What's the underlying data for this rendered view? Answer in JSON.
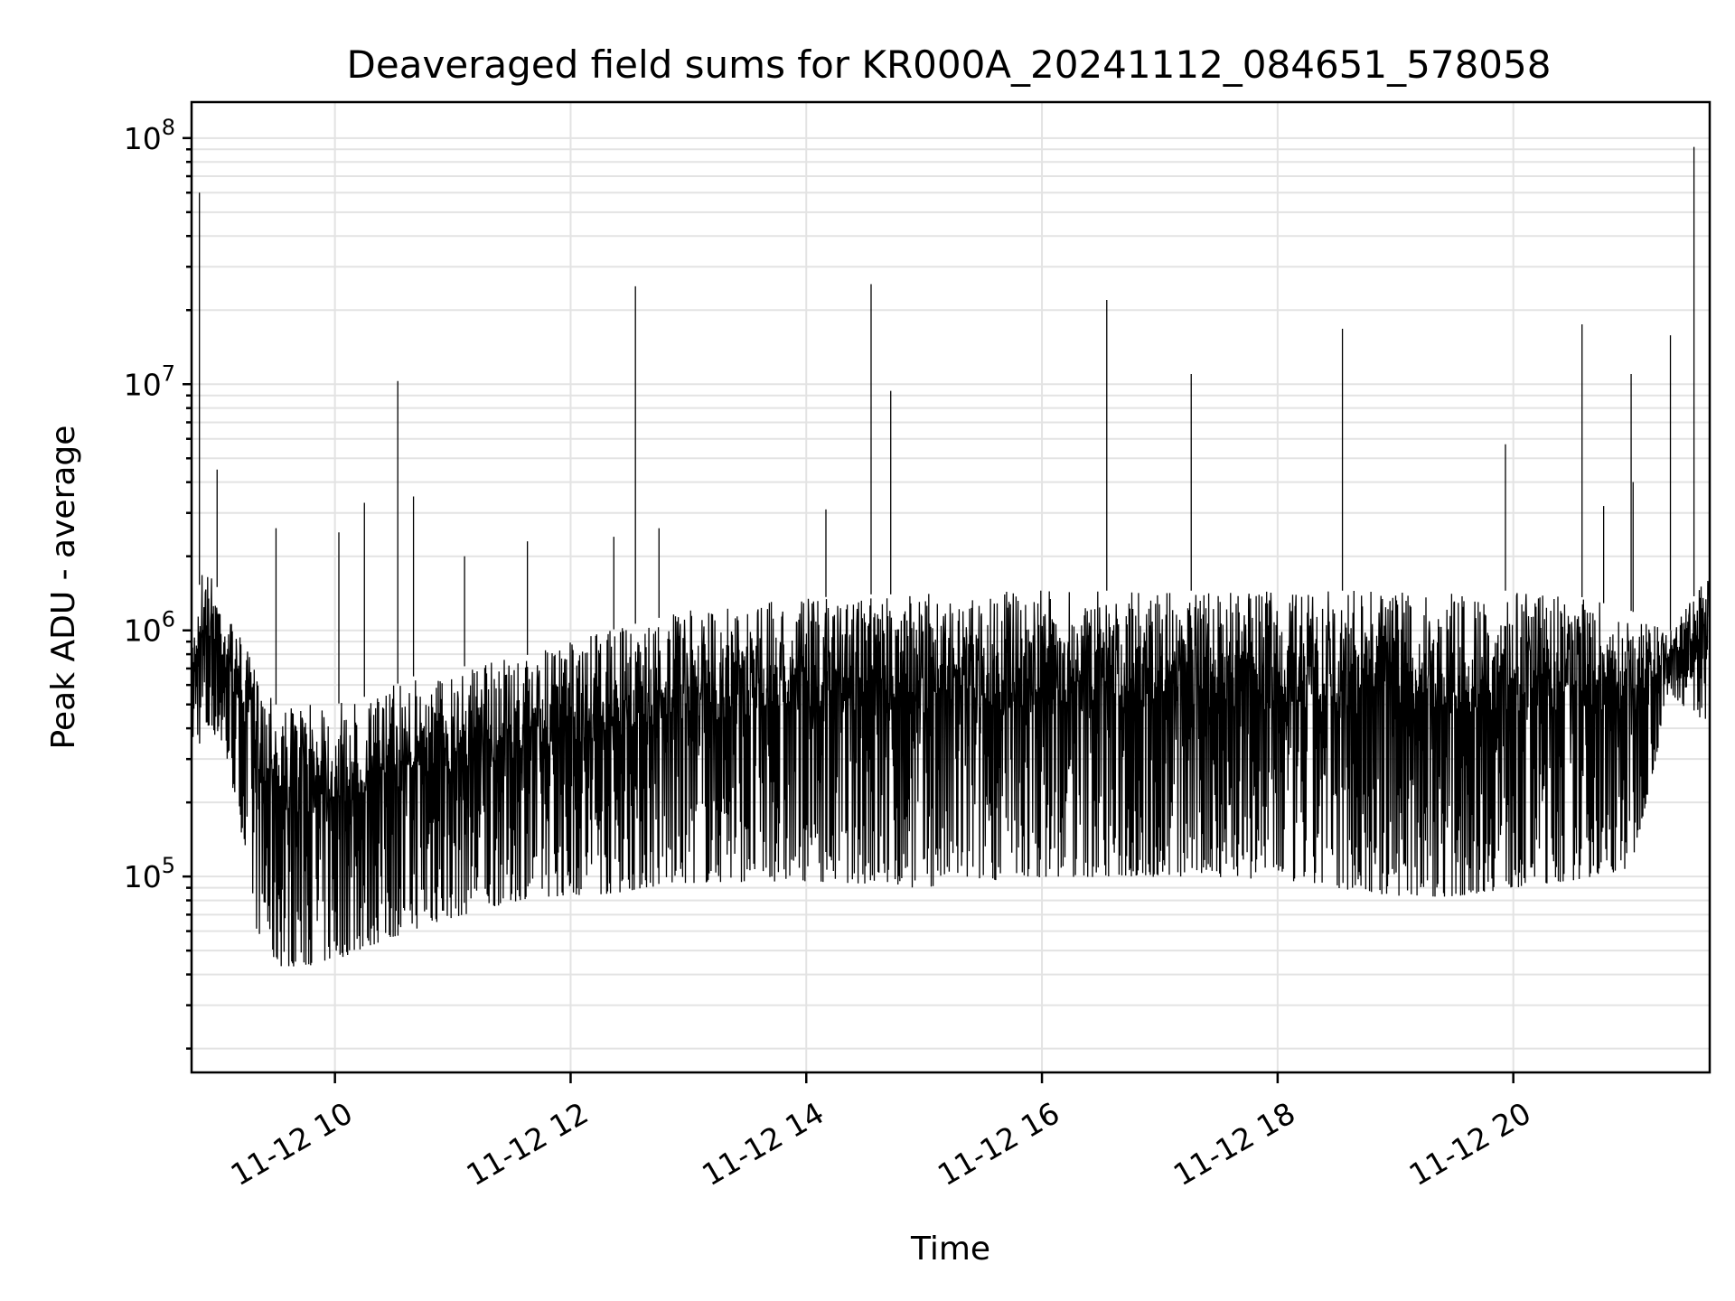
{
  "chart_data": {
    "type": "line",
    "title": "Deaveraged field sums for KR000A_20241112_084651_578058",
    "xlabel": "Time",
    "ylabel": "Peak ADU - average",
    "yscale": "log",
    "ylim": [
      16000,
      140000000
    ],
    "xlim": [
      "2024-11-12 08:47",
      "2024-11-12 21:40"
    ],
    "grid": true,
    "x_ticks": [
      "11-12 10",
      "11-12 12",
      "11-12 14",
      "11-12 16",
      "11-12 18",
      "11-12 20"
    ],
    "y_ticks": [
      {
        "base": "10",
        "exp": "5"
      },
      {
        "base": "10",
        "exp": "6"
      },
      {
        "base": "10",
        "exp": "7"
      },
      {
        "base": "10",
        "exp": "8"
      }
    ],
    "series": [
      {
        "color": "#000000",
        "x": [
          "2024-11-12 08:47",
          "2024-11-12 08:53",
          "2024-11-12 09:00",
          "2024-11-12 09:10",
          "2024-11-12 09:20",
          "2024-11-12 09:30",
          "2024-11-12 09:45",
          "2024-11-12 10:00",
          "2024-11-12 10:20",
          "2024-11-12 10:40",
          "2024-11-12 11:00",
          "2024-11-12 11:20",
          "2024-11-12 11:40",
          "2024-11-12 12:00",
          "2024-11-12 12:20",
          "2024-11-12 12:40",
          "2024-11-12 13:00",
          "2024-11-12 13:30",
          "2024-11-12 14:00",
          "2024-11-12 14:30",
          "2024-11-12 15:00",
          "2024-11-12 15:20",
          "2024-11-12 15:40",
          "2024-11-12 16:00",
          "2024-11-12 16:30",
          "2024-11-12 17:00",
          "2024-11-12 17:30",
          "2024-11-12 18:00",
          "2024-11-12 18:30",
          "2024-11-12 19:00",
          "2024-11-12 19:30",
          "2024-11-12 20:00",
          "2024-11-12 20:30",
          "2024-11-12 21:00",
          "2024-11-12 21:20",
          "2024-11-12 21:40"
        ],
        "y_high": [
          900000,
          2000000,
          1500000,
          1000000,
          700000,
          500000,
          500000,
          500000,
          550000,
          650000,
          700000,
          750000,
          800000,
          900000,
          1000000,
          1100000,
          1200000,
          1300000,
          1350000,
          1400000,
          1400000,
          1450000,
          1450000,
          1450000,
          1450000,
          1450000,
          1450000,
          1450000,
          1450000,
          1450000,
          1450000,
          1450000,
          1400000,
          1200000,
          1000000,
          1700000
        ],
        "y_low": [
          300000,
          250000,
          300000,
          150000,
          40000,
          28000,
          28000,
          30000,
          35000,
          40000,
          45000,
          50000,
          55000,
          55000,
          55000,
          58000,
          60000,
          60000,
          60000,
          58000,
          55000,
          60000,
          60000,
          62000,
          62000,
          62000,
          62000,
          60000,
          55000,
          50000,
          50000,
          55000,
          60000,
          70000,
          500000,
          300000
        ],
        "spikes": [
          {
            "x": "2024-11-12 08:51",
            "y": 60000000
          },
          {
            "x": "2024-11-12 09:00",
            "y": 4500000
          },
          {
            "x": "2024-11-12 09:30",
            "y": 2600000
          },
          {
            "x": "2024-11-12 10:02",
            "y": 2500000
          },
          {
            "x": "2024-11-12 10:15",
            "y": 3300000
          },
          {
            "x": "2024-11-12 10:32",
            "y": 10300000
          },
          {
            "x": "2024-11-12 10:40",
            "y": 3500000
          },
          {
            "x": "2024-11-12 11:06",
            "y": 2000000
          },
          {
            "x": "2024-11-12 11:38",
            "y": 2300000
          },
          {
            "x": "2024-11-12 12:22",
            "y": 2400000
          },
          {
            "x": "2024-11-12 12:33",
            "y": 25000000
          },
          {
            "x": "2024-11-12 12:45",
            "y": 2600000
          },
          {
            "x": "2024-11-12 14:10",
            "y": 3100000
          },
          {
            "x": "2024-11-12 14:33",
            "y": 25500000
          },
          {
            "x": "2024-11-12 14:43",
            "y": 9400000
          },
          {
            "x": "2024-11-12 16:33",
            "y": 22000000
          },
          {
            "x": "2024-11-12 17:16",
            "y": 11000000
          },
          {
            "x": "2024-11-12 18:33",
            "y": 16800000
          },
          {
            "x": "2024-11-12 19:56",
            "y": 5700000
          },
          {
            "x": "2024-11-12 20:35",
            "y": 17500000
          },
          {
            "x": "2024-11-12 20:46",
            "y": 3200000
          },
          {
            "x": "2024-11-12 21:00",
            "y": 11000000
          },
          {
            "x": "2024-11-12 21:01",
            "y": 4000000
          },
          {
            "x": "2024-11-12 21:20",
            "y": 15800000
          },
          {
            "x": "2024-11-12 21:32",
            "y": 92000000
          }
        ]
      }
    ]
  }
}
